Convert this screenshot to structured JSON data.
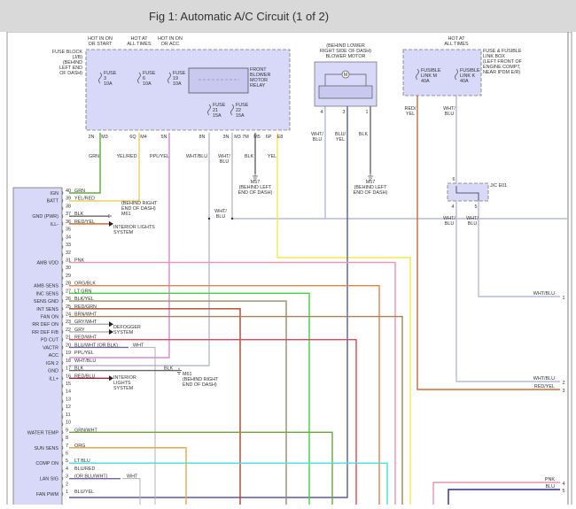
{
  "title": "Fig 1: Automatic A/C Circuit (1 of 2)",
  "fuse_block": {
    "label": [
      "FUSE BLOCK",
      "(J/B)",
      "(BEHIND",
      "LEFT END",
      "OF DASH)"
    ],
    "feeds": [
      [
        "HOT IN ON",
        "OR START"
      ],
      [
        "HOT AT",
        "ALL TIMES"
      ],
      [
        "HOT IN ON",
        "OR ACC"
      ]
    ],
    "fuses": [
      [
        "FUSE",
        "3",
        "10A"
      ],
      [
        "FUSE",
        "6",
        "10A"
      ],
      [
        "FUSE",
        "19",
        "10A"
      ],
      [
        "FUSE",
        "21",
        "15A"
      ],
      [
        "FUSE",
        "22",
        "15A"
      ]
    ],
    "relay": [
      "FRONT",
      "BLOWER",
      "MOTOR",
      "RELAY"
    ],
    "connectors": [
      "2N",
      "M3",
      "6Q",
      "M4",
      "5N",
      "8N",
      "3N",
      "M3",
      "7M",
      "M5",
      "6P",
      "E8"
    ],
    "wires": [
      "GRN",
      "YEL/RED",
      "PPL/YEL",
      "WHT/BLU",
      "WHT/",
      "BLU",
      "BLK",
      "YEL"
    ]
  },
  "ground_m57": [
    "M57",
    "(BEHIND LEFT",
    "END OF DASH)"
  ],
  "blower_motor": {
    "label": [
      "(BEHIND LOWER",
      "RIGHT SIDE OF DASH)",
      "BLOWER MOTOR"
    ],
    "motor": "M",
    "pins": [
      "4",
      "3",
      "1"
    ],
    "wires": [
      [
        "WHT/",
        "BLU"
      ],
      [
        "BLU/",
        "YEL"
      ],
      [
        "BLK"
      ]
    ]
  },
  "fusible_link_box": {
    "feed": [
      "HOT AT",
      "ALL TIMES"
    ],
    "label": [
      "FUSE & FUSIBLE",
      "LINK BOX",
      "(LEFT FRONT OF",
      "ENGINE COMPT,",
      "NEAR IPDM E/R)"
    ],
    "links": [
      [
        "FUSIBLE",
        "LINK M",
        "40A"
      ],
      [
        "FUSIBLE",
        "LINK K",
        "40A"
      ]
    ],
    "wires": [
      [
        "RED/",
        "YEL"
      ],
      [
        "WHT/",
        "BLU"
      ]
    ]
  },
  "jc_e01": {
    "label": "J/C E01",
    "pins": [
      "6",
      "4",
      "5"
    ],
    "wires": [
      [
        "WHT/",
        "BLU"
      ],
      [
        "WHT/",
        "BLU"
      ]
    ]
  },
  "splice_label": [
    "WHT/",
    "BLU"
  ],
  "ecu_pins": [
    {
      "num": "40",
      "name": "IGN",
      "wire": "GRN"
    },
    {
      "num": "39",
      "name": "BATT",
      "wire": "YEL/RED"
    },
    {
      "num": "38",
      "name": "",
      "wire": ""
    },
    {
      "num": "37",
      "name": "GND (PWR)",
      "wire": "BLK"
    },
    {
      "num": "36",
      "name": "ILL-",
      "wire": "RED/YEL"
    },
    {
      "num": "35",
      "name": "",
      "wire": ""
    },
    {
      "num": "34",
      "name": "",
      "wire": ""
    },
    {
      "num": "33",
      "name": "",
      "wire": ""
    },
    {
      "num": "32",
      "name": "",
      "wire": ""
    },
    {
      "num": "31",
      "name": "AMB VDD",
      "wire": "PNK"
    },
    {
      "num": "30",
      "name": "",
      "wire": ""
    },
    {
      "num": "29",
      "name": "",
      "wire": ""
    },
    {
      "num": "28",
      "name": "AMB SENS",
      "wire": "ORG/BLK"
    },
    {
      "num": "27",
      "name": "INC SENS",
      "wire": "LT GRN"
    },
    {
      "num": "26",
      "name": "SENS GND",
      "wire": "BLK/YEL"
    },
    {
      "num": "25",
      "name": "INT SENS",
      "wire": "RED/GRN"
    },
    {
      "num": "24",
      "name": "FAN ON",
      "wire": "BRN/WHT"
    },
    {
      "num": "23",
      "name": "RR DEF ON",
      "wire": "GRY/WHT"
    },
    {
      "num": "22",
      "name": "RR DEF F/B",
      "wire": "GRY"
    },
    {
      "num": "21",
      "name": "PD CUT",
      "wire": "RED/WHT"
    },
    {
      "num": "20",
      "name": "VACTR",
      "wire": "BLU/WHT    (OR BLK)"
    },
    {
      "num": "19",
      "name": "ACC",
      "wire": "PPL/YEL"
    },
    {
      "num": "18",
      "name": "IGN 2",
      "wire": "WHT/BLU"
    },
    {
      "num": "17",
      "name": "GND",
      "wire": "BLK"
    },
    {
      "num": "16",
      "name": "ILL+",
      "wire": "RED/BLU"
    },
    {
      "num": "15",
      "name": "",
      "wire": ""
    },
    {
      "num": "14",
      "name": "",
      "wire": ""
    },
    {
      "num": "13",
      "name": "",
      "wire": ""
    },
    {
      "num": "12",
      "name": "",
      "wire": ""
    },
    {
      "num": "11",
      "name": "",
      "wire": ""
    },
    {
      "num": "10",
      "name": "",
      "wire": ""
    },
    {
      "num": "9",
      "name": "WATER TEMP",
      "wire": "GRN/WHT"
    },
    {
      "num": "8",
      "name": "",
      "wire": ""
    },
    {
      "num": "7",
      "name": "SUN SENS",
      "wire": "ORG"
    },
    {
      "num": "6",
      "name": "",
      "wire": ""
    },
    {
      "num": "5",
      "name": "COMP ON",
      "wire": "LT BLU"
    },
    {
      "num": "4",
      "name": "",
      "wire": "BLU/RED"
    },
    {
      "num": "3",
      "name": "LAN SIG",
      "wire": "(OR BLU/WHT)"
    },
    {
      "num": "2",
      "name": "",
      "wire": ""
    },
    {
      "num": "1",
      "name": "FAN PWM",
      "wire": "BLU/YEL"
    }
  ],
  "annotations": {
    "m61_top": [
      "(BEHIND RIGHT",
      "END OF DASH)",
      "M61"
    ],
    "interior_lights_1": [
      "INTERIOR LIGHTS",
      "SYSTEM"
    ],
    "defogger": [
      "DEFOGGER",
      "SYSTEM"
    ],
    "wht_20": "WHT",
    "blk_17": "BLK",
    "m61_bottom": [
      "M61",
      "(BEHIND RIGHT",
      "END OF DASH)"
    ],
    "interior_lights_2": [
      "INTERIOR",
      "LIGHTS",
      "SYSTEM"
    ],
    "wht_3": "WHT"
  },
  "right_connector": [
    {
      "wire": "WHT/BLU",
      "pin": "1"
    },
    {
      "wire": "WHT/BLU",
      "pin": "2"
    },
    {
      "wire": "RED/YEL",
      "pin": "3"
    },
    {
      "wire": "PNK",
      "pin": "4"
    },
    {
      "wire": "BLU",
      "pin": "5"
    }
  ],
  "colors": {
    "box_fill": "#d8d8f8",
    "box_border": "#777777",
    "GRN": "#5fae3c",
    "YEL": "#f2e850",
    "YEL/RED": "#ecd060",
    "PPL/YEL": "#d58ccf",
    "WHT/BLU": "#b9b9d6",
    "BLK": "#666666",
    "PNK": "#e893b4",
    "ORG/BLK": "#e0834a",
    "LT GRN": "#3ed43e",
    "BLK/YEL": "#9a8a6a",
    "RED/GRN": "#b04428",
    "BRN/WHT": "#a5805e",
    "GRY": "#b0b0b0",
    "RED/WHT": "#d44a5a",
    "BLU/WHT": "#7a62a8",
    "RED/YEL": "#cc6a3a",
    "RED/BLU": "#a8203c",
    "GRN/WHT": "#66a83c",
    "ORG": "#e6a84a",
    "LT BLU": "#40e0e0",
    "BLU/YEL": "#5a5aa0",
    "BLU": "#2c2c90"
  }
}
